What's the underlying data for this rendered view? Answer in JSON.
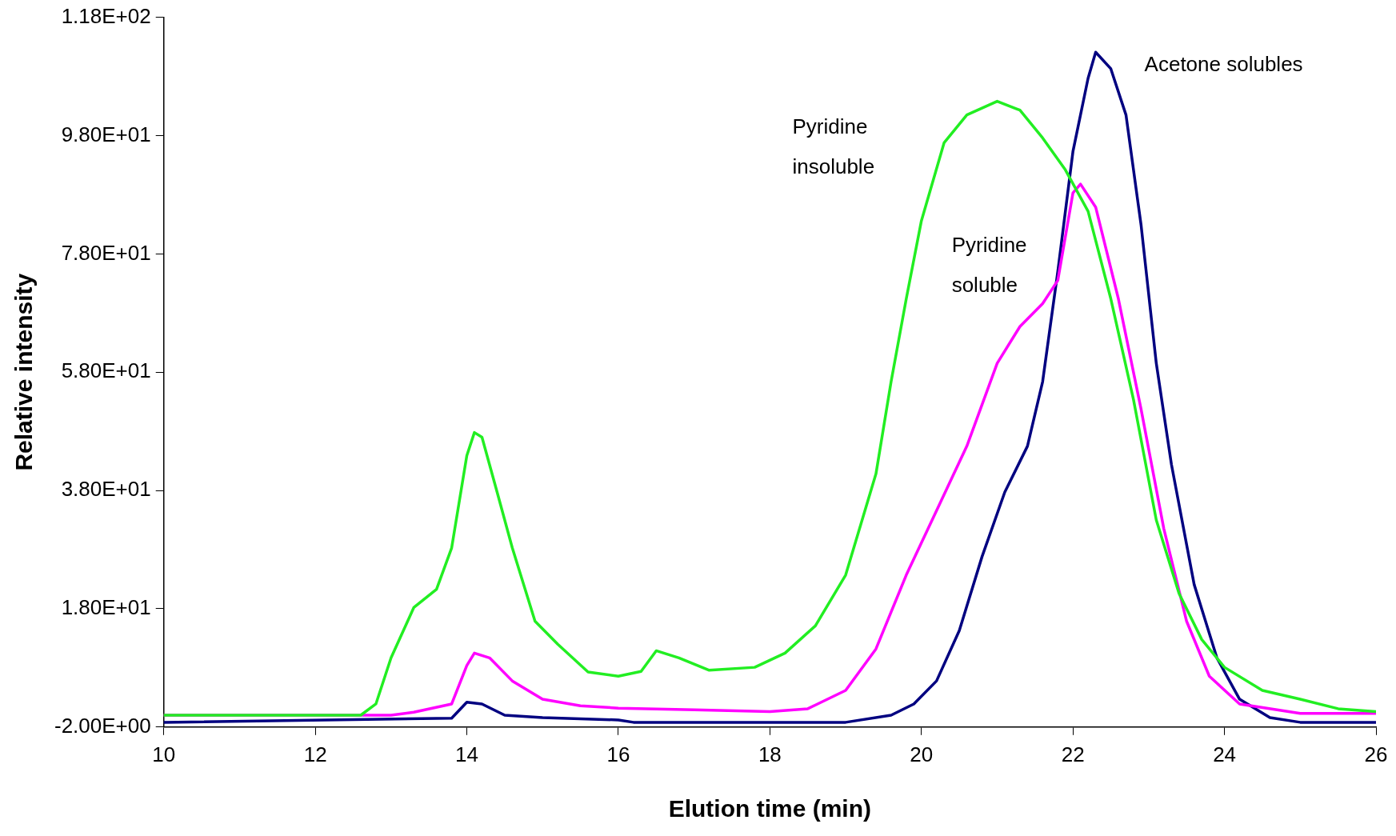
{
  "chart_data": {
    "type": "line",
    "xlabel": "Elution time (min)",
    "ylabel": "Relative intensity",
    "xlim": [
      10,
      26
    ],
    "xticks": [
      10,
      12,
      14,
      16,
      18,
      20,
      22,
      24,
      26
    ],
    "ylim": [
      -2,
      118
    ],
    "yticks": [
      {
        "value": -2,
        "label": "-2.00E+00"
      },
      {
        "value": 18,
        "label": "1.80E+01"
      },
      {
        "value": 38,
        "label": "3.80E+01"
      },
      {
        "value": 58,
        "label": "5.80E+01"
      },
      {
        "value": 78,
        "label": "7.80E+01"
      },
      {
        "value": 98,
        "label": "9.80E+01"
      },
      {
        "value": 118,
        "label": "1.18E+02"
      }
    ],
    "grid": false,
    "legend": false,
    "marker": "none",
    "line_style": "solid",
    "series": [
      {
        "name": "Pyridine\ninsoluble",
        "color": "#22ee22",
        "x": [
          10,
          12.6,
          12.8,
          13.0,
          13.3,
          13.6,
          13.8,
          14.0,
          14.1,
          14.2,
          14.4,
          14.6,
          14.9,
          15.2,
          15.6,
          16.0,
          16.3,
          16.5,
          16.8,
          17.2,
          17.8,
          18.2,
          18.6,
          19.0,
          19.4,
          19.6,
          19.8,
          20.0,
          20.3,
          20.6,
          21.0,
          21.3,
          21.6,
          21.9,
          22.2,
          22.5,
          22.8,
          23.1,
          23.4,
          23.7,
          24.0,
          24.5,
          25.0,
          25.5,
          26
        ],
        "values": [
          0,
          0,
          1.9,
          9.7,
          18.2,
          21.3,
          28.3,
          43.9,
          47.8,
          47,
          37.7,
          28.3,
          15.9,
          12,
          7.3,
          6.6,
          7.4,
          10.9,
          9.7,
          7.6,
          8.1,
          10.5,
          15.1,
          23.7,
          40.8,
          56.4,
          70.4,
          83.6,
          96.8,
          101.5,
          103.8,
          102.3,
          97.6,
          92.2,
          85.2,
          70.4,
          53.3,
          33,
          20.6,
          12.8,
          8.1,
          4.2,
          2.7,
          1.1,
          0.6
        ]
      },
      {
        "name": "Pyridine\nsoluble",
        "color": "#ff00ff",
        "x": [
          10,
          13,
          13.3,
          13.8,
          14.0,
          14.1,
          14.3,
          14.6,
          15.0,
          15.5,
          16,
          17,
          18,
          18.5,
          19.0,
          19.4,
          19.8,
          20.2,
          20.6,
          21.0,
          21.3,
          21.6,
          21.8,
          22.0,
          22.1,
          22.3,
          22.6,
          22.9,
          23.2,
          23.5,
          23.8,
          24.2,
          25,
          26
        ],
        "values": [
          0,
          0,
          0.5,
          1.9,
          8.4,
          10.5,
          9.7,
          5.8,
          2.7,
          1.6,
          1.2,
          0.9,
          0.6,
          1.1,
          4.2,
          11.2,
          23.7,
          34.6,
          45.5,
          59.5,
          65.7,
          69.6,
          73.5,
          88.3,
          89.8,
          85.9,
          70.4,
          51.7,
          31.5,
          15.9,
          6.6,
          1.9,
          0.3,
          0.3
        ]
      },
      {
        "name": "Acetone solubles",
        "color": "#000080",
        "x": [
          10,
          13.8,
          14.0,
          14.2,
          14.5,
          15,
          16,
          16.2,
          19,
          19.6,
          19.9,
          20.2,
          20.5,
          20.8,
          21.1,
          21.4,
          21.6,
          21.8,
          22.0,
          22.2,
          22.3,
          22.5,
          22.7,
          22.9,
          23.1,
          23.3,
          23.6,
          23.9,
          24.2,
          24.6,
          25,
          26
        ],
        "values": [
          -1.2,
          -0.5,
          2.2,
          1.9,
          0,
          -0.4,
          -0.8,
          -1.2,
          -1.2,
          0,
          1.9,
          5.8,
          14.3,
          26.8,
          37.7,
          45.5,
          56.4,
          75,
          95.3,
          107.7,
          112.1,
          109.3,
          101.5,
          82.8,
          59.5,
          42.4,
          22.1,
          9.7,
          2.7,
          -0.4,
          -1.2,
          -1.2
        ]
      }
    ]
  }
}
